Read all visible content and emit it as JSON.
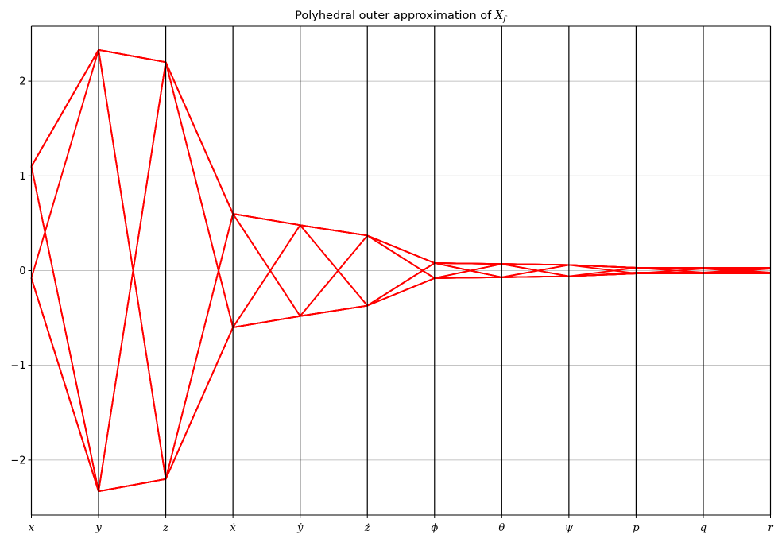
{
  "chart_data": {
    "type": "line",
    "subtype": "parallel-coordinates",
    "title": "Polyhedral outer approximation of X_f",
    "title_main": "Polyhedral outer approximation of ",
    "title_math": "X",
    "title_sub": "f",
    "categories": [
      "x",
      "y",
      "z",
      "ẋ",
      "ẏ",
      "ż",
      "ϕ",
      "θ",
      "ψ",
      "p",
      "q",
      "r"
    ],
    "ylim": [
      -2.58,
      2.58
    ],
    "yticks": [
      2,
      1,
      0,
      -1,
      -2
    ],
    "ytick_labels": [
      "2",
      "1",
      "0",
      "−1",
      "−2"
    ],
    "grid": "y-major",
    "line_color": "#ff0000",
    "series": [
      {
        "values": [
          1.1,
          2.33,
          2.2,
          0.6,
          0.48,
          0.37,
          0.08,
          0.07,
          0.06,
          0.03,
          0.03,
          0.03
        ]
      },
      {
        "values": [
          1.1,
          2.33,
          2.2,
          0.6,
          0.48,
          0.37,
          0.08,
          -0.07,
          -0.06,
          -0.03,
          -0.03,
          -0.03
        ]
      },
      {
        "values": [
          -0.08,
          2.33,
          2.2,
          0.6,
          0.48,
          0.37,
          -0.08,
          0.07,
          0.06,
          0.03,
          0.02,
          0.02
        ]
      },
      {
        "values": [
          1.1,
          -2.33,
          -2.2,
          -0.6,
          -0.48,
          -0.37,
          -0.08,
          -0.07,
          -0.06,
          -0.03,
          -0.03,
          -0.03
        ]
      },
      {
        "values": [
          1.1,
          -2.33,
          -2.2,
          -0.6,
          -0.48,
          -0.37,
          0.08,
          0.07,
          0.06,
          0.03,
          0.03,
          0.03
        ]
      },
      {
        "values": [
          -0.08,
          -2.33,
          -2.2,
          -0.6,
          -0.48,
          -0.37,
          0.08,
          -0.07,
          -0.06,
          -0.02,
          -0.02,
          -0.02
        ]
      },
      {
        "values": [
          1.1,
          2.33,
          -2.2,
          0.6,
          -0.48,
          0.37,
          0.08,
          0.07,
          0.06,
          0.03,
          0.03,
          0.03
        ]
      },
      {
        "values": [
          -0.08,
          -2.33,
          2.2,
          -0.6,
          0.48,
          -0.37,
          -0.08,
          -0.07,
          -0.06,
          -0.03,
          -0.03,
          -0.03
        ]
      },
      {
        "values": [
          1.1,
          2.33,
          2.2,
          -0.6,
          0.48,
          -0.37,
          0.08,
          0.07,
          0.06,
          0.03,
          0.03,
          0.03
        ]
      },
      {
        "values": [
          -0.08,
          -2.33,
          -2.2,
          0.6,
          -0.48,
          0.37,
          -0.08,
          -0.07,
          -0.06,
          -0.03,
          -0.03,
          -0.03
        ]
      },
      {
        "values": [
          1.1,
          -2.33,
          2.2,
          -0.6,
          -0.48,
          -0.37,
          0.08,
          0.07,
          0.06,
          0.03,
          0.03,
          0.03
        ]
      },
      {
        "values": [
          -0.08,
          2.33,
          -2.2,
          0.6,
          0.48,
          0.37,
          -0.08,
          -0.07,
          -0.06,
          -0.03,
          -0.03,
          -0.03
        ]
      },
      {
        "values": [
          1.1,
          2.33,
          2.2,
          0.6,
          -0.48,
          0.37,
          -0.08,
          0.07,
          -0.06,
          0.03,
          -0.02,
          0.03
        ]
      },
      {
        "values": [
          -0.08,
          -2.33,
          -2.2,
          -0.6,
          0.48,
          -0.37,
          0.08,
          -0.07,
          0.06,
          -0.03,
          0.02,
          -0.03
        ]
      },
      {
        "values": [
          1.1,
          2.33,
          -2.2,
          -0.6,
          -0.48,
          -0.37,
          -0.08,
          -0.07,
          0.06,
          0.03,
          0.03,
          -0.02
        ]
      },
      {
        "values": [
          -0.08,
          -2.33,
          2.2,
          0.6,
          0.48,
          0.37,
          0.08,
          0.07,
          -0.06,
          -0.03,
          -0.03,
          0.02
        ]
      }
    ]
  }
}
